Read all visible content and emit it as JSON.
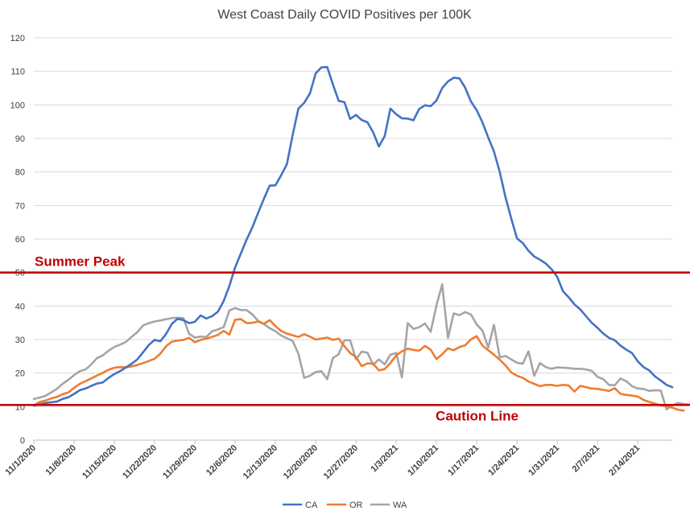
{
  "chart_data": {
    "type": "line",
    "title": "West Coast Daily COVID Positives per 100K",
    "xlabel": "",
    "ylabel": "",
    "ylim": [
      0,
      120
    ],
    "yticks": [
      0,
      10,
      20,
      30,
      40,
      50,
      60,
      70,
      80,
      90,
      100,
      110,
      120
    ],
    "xticks": [
      "11/1/2020",
      "11/8/2020",
      "11/15/2020",
      "11/22/2020",
      "11/29/2020",
      "12/6/2020",
      "12/13/2020",
      "12/20/2020",
      "12/27/2020",
      "1/3/2021",
      "1/10/2021",
      "1/17/2021",
      "1/24/2021",
      "1/31/2021",
      "2/7/2021",
      "2/14/2021"
    ],
    "x_start": "11/1/2020",
    "x_end": "2/19/2021",
    "grid": "horizontal",
    "legend": "bottom",
    "reference_lines": [
      {
        "label": "Summer Peak",
        "value": 50,
        "color": "#c00000",
        "label_position": "left-above"
      },
      {
        "label": "Caution Line",
        "value": 10.5,
        "color": "#c00000",
        "label_position": "right-below"
      }
    ],
    "series": [
      {
        "name": "CA",
        "color": "#4472c4",
        "values": [
          10.3,
          10.7,
          11.1,
          11.3,
          11.5,
          12.3,
          12.8,
          13.8,
          14.9,
          15.4,
          16.2,
          16.9,
          17.2,
          18.6,
          19.7,
          20.6,
          21.7,
          22.8,
          24.1,
          26.2,
          28.4,
          29.9,
          29.5,
          31.7,
          34.7,
          36.2,
          35.8,
          34.9,
          35.3,
          37.2,
          36.3,
          37.0,
          38.3,
          41.5,
          46.0,
          51.5,
          55.7,
          59.8,
          63.5,
          67.8,
          72.0,
          75.9,
          76.0,
          79.0,
          82.3,
          91.0,
          98.9,
          100.6,
          103.4,
          109.4,
          111.2,
          111.3,
          106.1,
          101.2,
          100.8,
          95.8,
          97.0,
          95.5,
          94.8,
          91.8,
          87.6,
          90.7,
          98.9,
          97.2,
          96.0,
          95.9,
          95.4,
          98.8,
          99.9,
          99.6,
          101.3,
          105.0,
          107.0,
          108.1,
          107.9,
          105.1,
          101.0,
          98.4,
          94.8,
          90.3,
          86.1,
          80.0,
          72.5,
          66.1,
          60.2,
          58.8,
          56.5,
          54.8,
          53.8,
          52.7,
          51.0,
          48.7,
          44.4,
          42.6,
          40.5,
          39.0,
          37.0,
          35.0,
          33.5,
          31.8,
          30.5,
          29.8,
          28.2,
          27.0,
          26.0,
          23.5,
          21.8,
          20.8,
          19.0,
          17.8,
          16.5,
          15.8
        ]
      },
      {
        "name": "OR",
        "color": "#ed7d31",
        "values": [
          10.4,
          11.4,
          11.8,
          12.4,
          12.9,
          13.7,
          14.2,
          15.6,
          16.8,
          17.6,
          18.4,
          19.3,
          20.1,
          21.0,
          21.6,
          21.8,
          21.7,
          22.0,
          22.4,
          23.0,
          23.6,
          24.3,
          25.8,
          28.0,
          29.4,
          29.7,
          29.9,
          30.5,
          29.2,
          29.9,
          30.3,
          30.8,
          31.4,
          32.6,
          31.5,
          35.9,
          36.1,
          34.9,
          35.0,
          35.4,
          34.7,
          35.8,
          34.0,
          32.6,
          31.8,
          31.3,
          30.8,
          31.6,
          30.9,
          30.0,
          30.3,
          30.6,
          29.9,
          30.3,
          28.0,
          26.0,
          24.8,
          22.1,
          22.9,
          22.8,
          20.8,
          21.2,
          23.0,
          25.3,
          26.5,
          27.3,
          26.9,
          26.7,
          28.1,
          27.0,
          24.2,
          25.6,
          27.4,
          26.8,
          27.8,
          28.3,
          30.1,
          31.0,
          28.2,
          26.8,
          25.5,
          24.0,
          22.3,
          20.2,
          19.2,
          18.6,
          17.5,
          16.8,
          16.1,
          16.5,
          16.5,
          16.2,
          16.5,
          16.3,
          14.5,
          16.2,
          15.8,
          15.4,
          15.3,
          15.0,
          14.7,
          15.5,
          13.8,
          13.5,
          13.3,
          13.0,
          12.0,
          11.4,
          10.9,
          10.4,
          10.2,
          9.7,
          9.1,
          8.8
        ]
      },
      {
        "name": "WA",
        "color": "#a5a5a5",
        "values": [
          12.3,
          12.7,
          13.2,
          14.2,
          15.3,
          16.8,
          18.0,
          19.4,
          20.6,
          21.1,
          22.6,
          24.5,
          25.3,
          26.7,
          27.8,
          28.5,
          29.3,
          30.8,
          32.2,
          34.2,
          34.9,
          35.4,
          35.7,
          36.1,
          36.4,
          36.5,
          36.4,
          31.7,
          30.6,
          30.9,
          30.8,
          32.5,
          33.0,
          33.7,
          38.7,
          39.4,
          38.8,
          38.8,
          37.5,
          35.6,
          34.6,
          33.4,
          32.5,
          31.2,
          30.4,
          29.6,
          25.8,
          18.6,
          19.2,
          20.3,
          20.6,
          18.2,
          24.5,
          25.6,
          29.8,
          29.8,
          24.1,
          26.4,
          26.1,
          22.5,
          24.1,
          22.6,
          25.5,
          26.0,
          18.7,
          34.9,
          33.2,
          33.7,
          34.8,
          32.3,
          40.2,
          46.5,
          30.5,
          37.8,
          37.3,
          38.2,
          37.5,
          34.5,
          32.7,
          27.6,
          34.4,
          24.7,
          25.1,
          24.1,
          23.1,
          22.8,
          26.5,
          19.2,
          23.0,
          21.8,
          21.3,
          21.7,
          21.6,
          21.5,
          21.3,
          21.3,
          21.1,
          20.7,
          18.9,
          18.2,
          16.5,
          16.4,
          18.4,
          17.6,
          16.1,
          15.4,
          15.3,
          14.7,
          14.9,
          14.8,
          9.2,
          10.4,
          11.1,
          10.8,
          10.6
        ]
      }
    ]
  }
}
